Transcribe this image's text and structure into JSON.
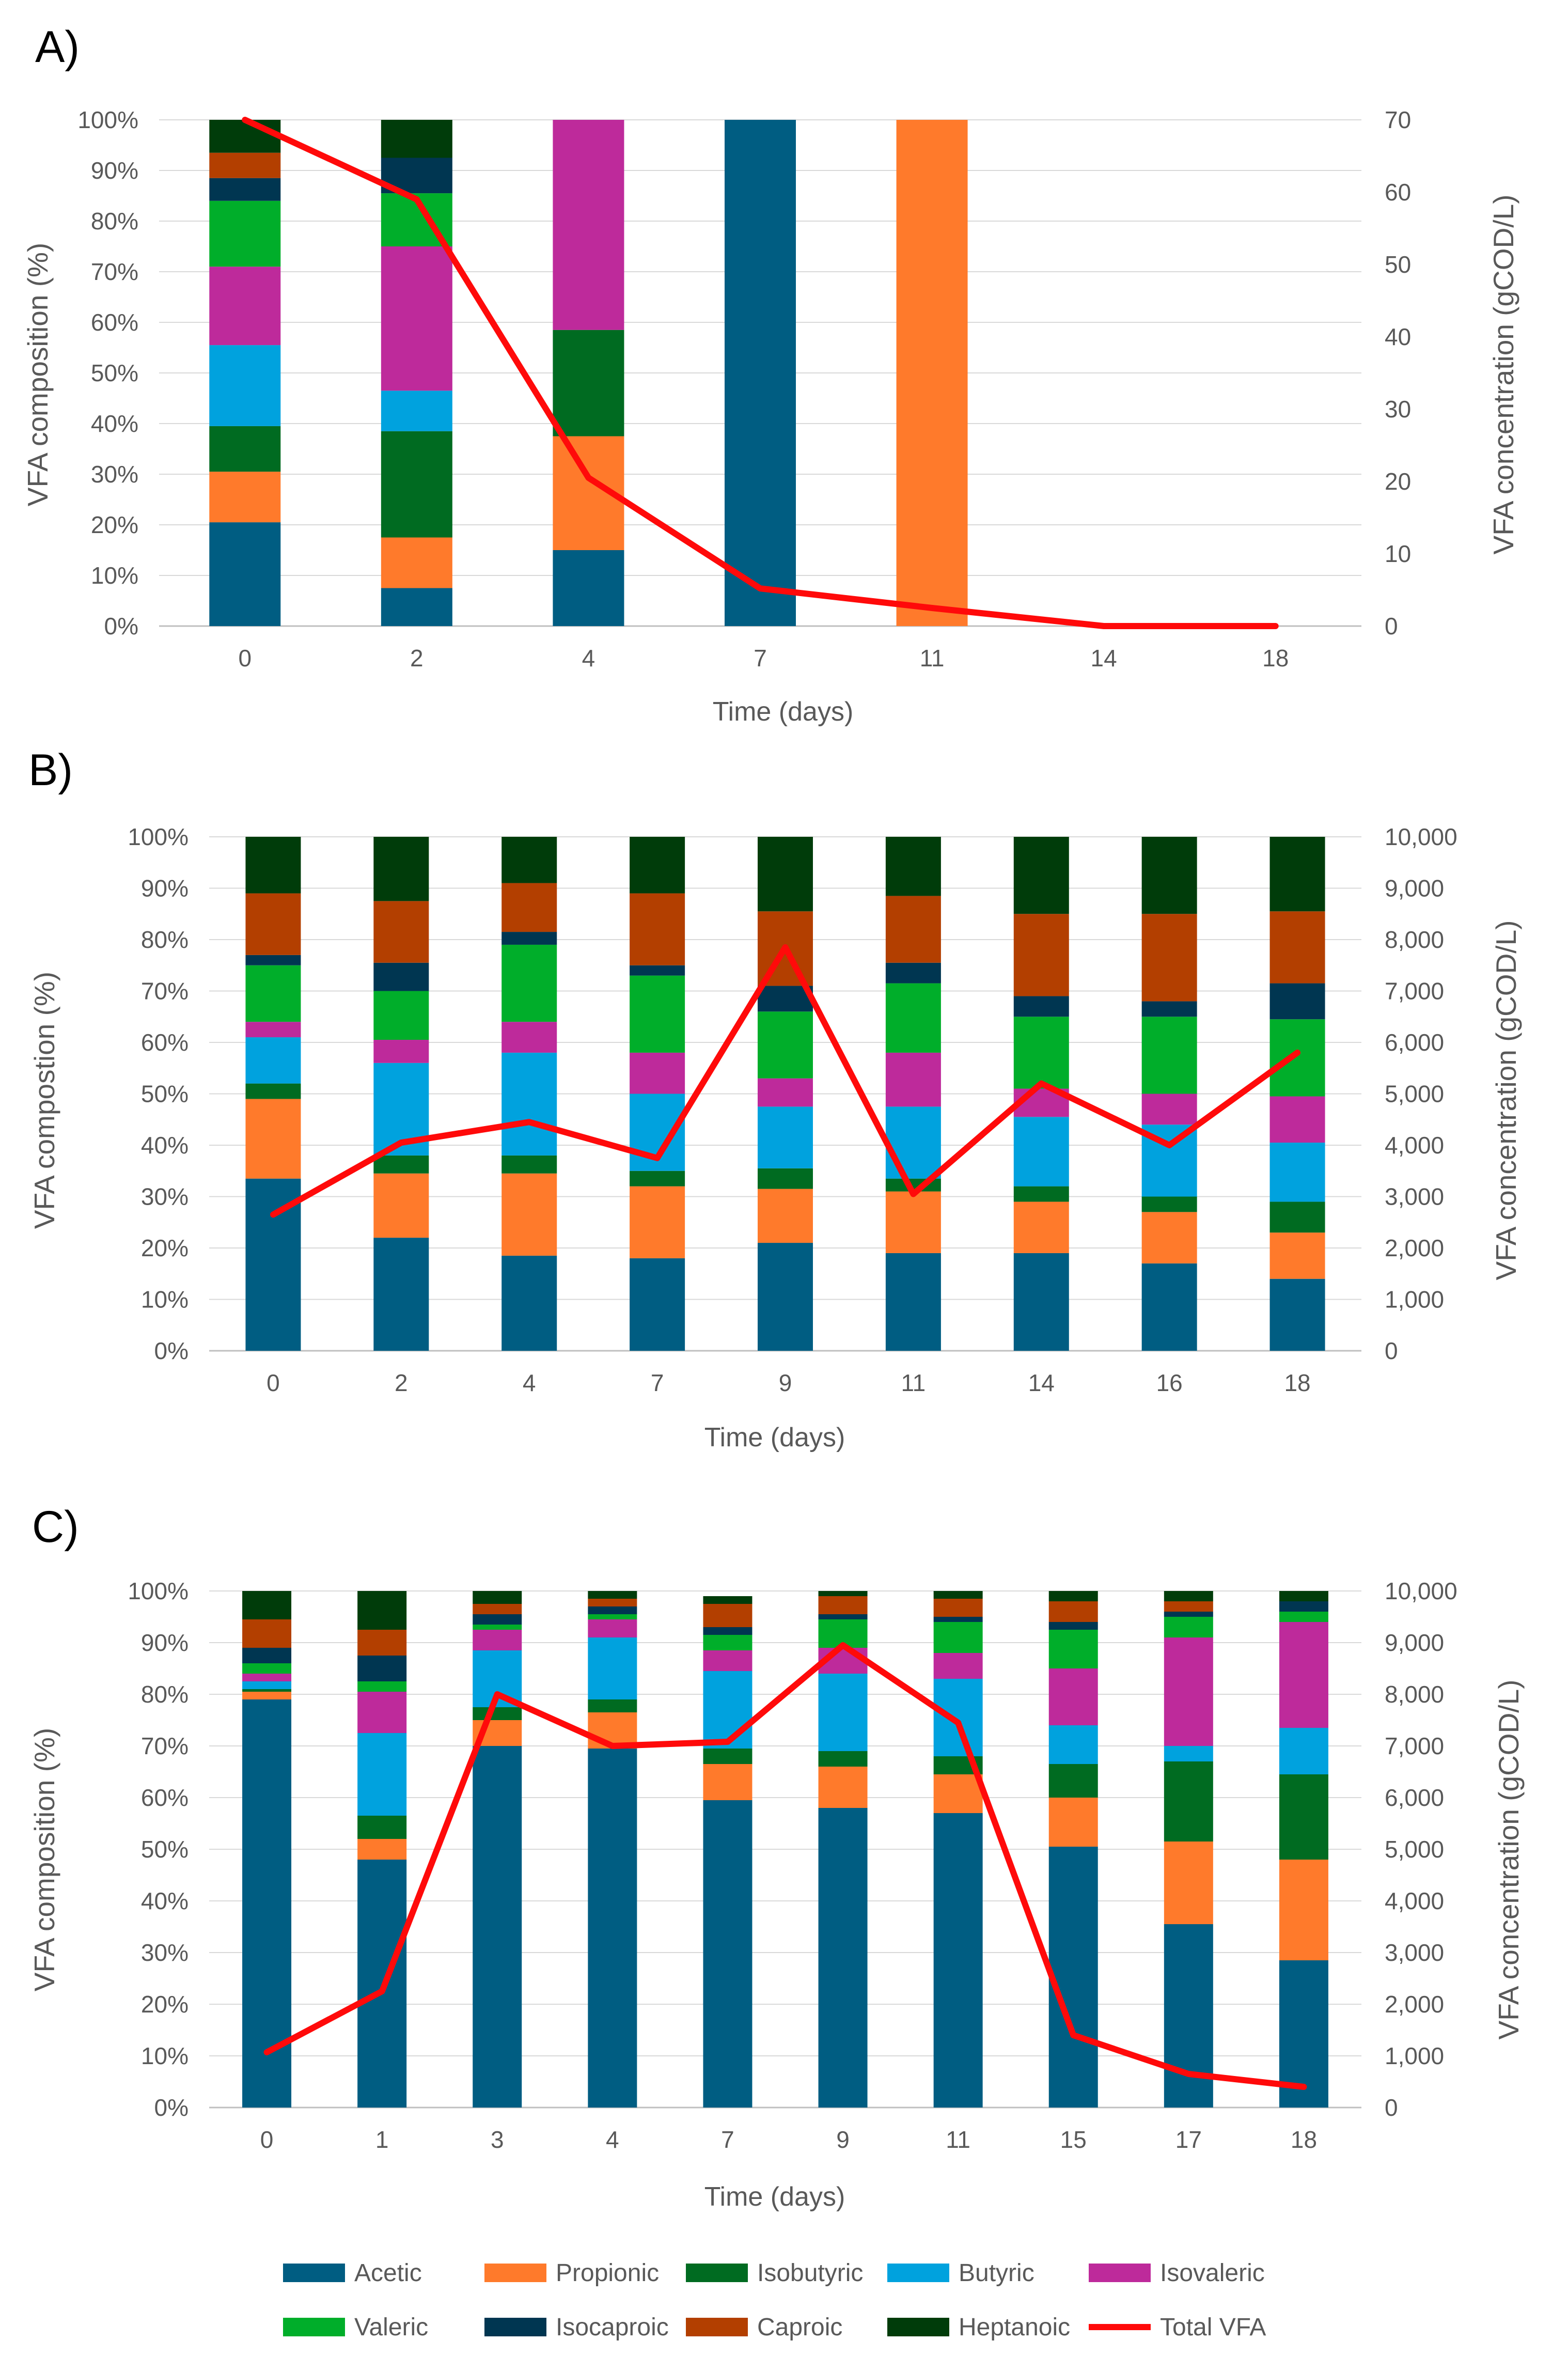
{
  "colors": {
    "Acetic": "#005D82",
    "Propionic": "#FF7A2B",
    "Isobutyric": "#006B21",
    "Butyric": "#00A2DE",
    "Isovaleric": "#BE2A9B",
    "Valeric": "#00AE2A",
    "Isocaproic": "#003651",
    "Caproic": "#B33F00",
    "Heptanoic": "#003C0A",
    "Total VFA": "#FF0A0A",
    "text": "#595959",
    "grid": "#D9D9D9",
    "axis": "#BFBFBF"
  },
  "legend": {
    "items": [
      "Acetic",
      "Propionic",
      "Isobutyric",
      "Butyric",
      "Isovaleric",
      "Valeric",
      "Isocaproic",
      "Caproic",
      "Heptanoic",
      "Total VFA"
    ]
  },
  "chart_data": [
    {
      "panel_label": "A)",
      "type": "bar",
      "stacked": true,
      "title": "",
      "xlabel": "Time (days)",
      "ylabel": "VFA composition (%)",
      "y2label": "VFA concentration (gCOD/L)",
      "categories": [
        "0",
        "2",
        "4",
        "7",
        "11",
        "14",
        "18"
      ],
      "ylim": [
        0,
        100
      ],
      "yticks": [
        "0%",
        "10%",
        "20%",
        "30%",
        "40%",
        "50%",
        "60%",
        "70%",
        "80%",
        "90%",
        "100%"
      ],
      "y2lim": [
        0,
        70
      ],
      "y2ticks": [
        "0",
        "10",
        "20",
        "30",
        "40",
        "50",
        "60",
        "70"
      ],
      "series": [
        {
          "name": "Acetic",
          "values": [
            20.5,
            7.5,
            15,
            100,
            0,
            0,
            0
          ]
        },
        {
          "name": "Propionic",
          "values": [
            10,
            10,
            22.5,
            0,
            100,
            0,
            0
          ]
        },
        {
          "name": "Isobutyric",
          "values": [
            9,
            21,
            21,
            0,
            0,
            0,
            0
          ]
        },
        {
          "name": "Butyric",
          "values": [
            16,
            8,
            0,
            0,
            0,
            0,
            0
          ]
        },
        {
          "name": "Isovaleric",
          "values": [
            15.5,
            28.5,
            41.5,
            0,
            0,
            0,
            0
          ]
        },
        {
          "name": "Valeric",
          "values": [
            13,
            10.5,
            0,
            0,
            0,
            0,
            0
          ]
        },
        {
          "name": "Isocaproic",
          "values": [
            4.5,
            7,
            0,
            0,
            0,
            0,
            0
          ]
        },
        {
          "name": "Caproic",
          "values": [
            5,
            0,
            0,
            0,
            0,
            0,
            0
          ]
        },
        {
          "name": "Heptanoic",
          "values": [
            6.5,
            7.5,
            0,
            0,
            0,
            0,
            0
          ]
        }
      ],
      "line": {
        "name": "Total VFA",
        "axis": "secondary",
        "values": [
          70,
          59,
          20.5,
          5.2,
          2.5,
          0,
          0
        ]
      }
    },
    {
      "panel_label": "B)",
      "type": "bar",
      "stacked": true,
      "title": "",
      "xlabel": "Time (days)",
      "ylabel": "VFA compostion  (%)",
      "y2label": "VFA concentration  (gCOD/L)",
      "categories": [
        "0",
        "2",
        "4",
        "7",
        "9",
        "11",
        "14",
        "16",
        "18"
      ],
      "ylim": [
        0,
        100
      ],
      "yticks": [
        "0%",
        "10%",
        "20%",
        "30%",
        "40%",
        "50%",
        "60%",
        "70%",
        "80%",
        "90%",
        "100%"
      ],
      "y2lim": [
        0,
        10000
      ],
      "y2ticks": [
        "0",
        "1,000",
        "2,000",
        "3,000",
        "4,000",
        "5,000",
        "6,000",
        "7,000",
        "8,000",
        "9,000",
        "10,000"
      ],
      "series": [
        {
          "name": "Acetic",
          "values": [
            33.5,
            22,
            18.5,
            18,
            21,
            19,
            19,
            17,
            14
          ]
        },
        {
          "name": "Propionic",
          "values": [
            15.5,
            12.5,
            16,
            14,
            10.5,
            12,
            10,
            10,
            9
          ]
        },
        {
          "name": "Isobutyric",
          "values": [
            3,
            3.5,
            3.5,
            3,
            4,
            2.5,
            3,
            3,
            6
          ]
        },
        {
          "name": "Butyric",
          "values": [
            9,
            18,
            20,
            15,
            12,
            14,
            13.5,
            14,
            11.5
          ]
        },
        {
          "name": "Isovaleric",
          "values": [
            3,
            4.5,
            6,
            8,
            5.5,
            10.5,
            5.5,
            6,
            9
          ]
        },
        {
          "name": "Valeric",
          "values": [
            11,
            9.5,
            15,
            15,
            13,
            13.5,
            14,
            15,
            15
          ]
        },
        {
          "name": "Isocaproic",
          "values": [
            2,
            5.5,
            2.5,
            2,
            5,
            4,
            4,
            3,
            7
          ]
        },
        {
          "name": "Caproic",
          "values": [
            12,
            12,
            9.5,
            14,
            14.5,
            13,
            16,
            17,
            14
          ]
        },
        {
          "name": "Heptanoic",
          "values": [
            11,
            12.5,
            9,
            11,
            14.5,
            11.5,
            15,
            15,
            14.5
          ]
        }
      ],
      "line": {
        "name": "Total VFA",
        "axis": "secondary",
        "values": [
          2650,
          4050,
          4450,
          3750,
          7850,
          3050,
          5200,
          4000,
          5800
        ]
      }
    },
    {
      "panel_label": "C)",
      "type": "bar",
      "stacked": true,
      "title": "",
      "xlabel": "Time (days)",
      "ylabel": "VFA composition (%)",
      "y2label": "VFA concentration (gCOD/L)",
      "categories": [
        "0",
        "1",
        "3",
        "4",
        "7",
        "9",
        "11",
        "15",
        "17",
        "18"
      ],
      "ylim": [
        0,
        100
      ],
      "yticks": [
        "0%",
        "10%",
        "20%",
        "30%",
        "40%",
        "50%",
        "60%",
        "70%",
        "80%",
        "90%",
        "100%"
      ],
      "y2lim": [
        0,
        10000
      ],
      "y2ticks": [
        "0",
        "1,000",
        "2,000",
        "3,000",
        "4,000",
        "5,000",
        "6,000",
        "7,000",
        "8,000",
        "9,000",
        "10,000"
      ],
      "series": [
        {
          "name": "Acetic",
          "values": [
            79,
            48,
            70,
            69.5,
            59.5,
            58,
            57,
            50.5,
            35.5,
            28.5
          ]
        },
        {
          "name": "Propionic",
          "values": [
            1.5,
            4,
            5,
            7,
            7,
            8,
            7.5,
            9.5,
            16,
            19.5
          ]
        },
        {
          "name": "Isobutyric",
          "values": [
            0.5,
            4.5,
            2.5,
            2.5,
            3,
            3,
            3.5,
            6.5,
            15.5,
            16.5
          ]
        },
        {
          "name": "Butyric",
          "values": [
            1.5,
            16,
            11,
            12,
            15,
            15,
            15,
            7.5,
            3,
            9
          ]
        },
        {
          "name": "Isovaleric",
          "values": [
            1.5,
            8,
            4,
            3.5,
            4,
            5,
            5,
            11,
            21,
            20.5
          ]
        },
        {
          "name": "Valeric",
          "values": [
            2,
            2,
            1,
            1,
            3,
            5.5,
            6,
            7.5,
            4,
            2
          ]
        },
        {
          "name": "Isocaproic",
          "values": [
            3,
            5,
            2,
            1.5,
            1.5,
            1,
            1,
            1.5,
            1,
            2
          ]
        },
        {
          "name": "Caproic",
          "values": [
            5.5,
            5,
            2,
            1.5,
            4.5,
            3.5,
            3.5,
            4,
            2,
            0
          ]
        },
        {
          "name": "Heptanoic",
          "values": [
            5.5,
            7.5,
            2.5,
            1.5,
            1.5,
            1,
            1.5,
            2,
            2,
            2
          ]
        }
      ],
      "line": {
        "name": "Total VFA",
        "axis": "secondary",
        "values": [
          1070,
          2250,
          8000,
          7000,
          7080,
          8950,
          7450,
          1400,
          650,
          400
        ]
      }
    }
  ]
}
